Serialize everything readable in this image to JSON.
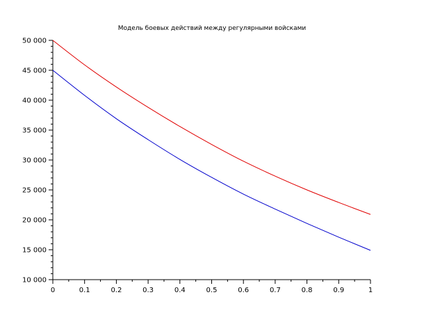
{
  "chart_data": {
    "type": "line",
    "title": "Модель боевых действий между регулярными войсками",
    "xlabel": "",
    "ylabel": "",
    "xlim": [
      0,
      1
    ],
    "ylim": [
      10000,
      50000
    ],
    "x_ticks": [
      "0",
      "0.1",
      "0.2",
      "0.3",
      "0.4",
      "0.5",
      "0.6",
      "0.7",
      "0.8",
      "0.9",
      "1"
    ],
    "y_ticks": [
      "10 000",
      "15 000",
      "20 000",
      "25 000",
      "30 000",
      "35 000",
      "40 000",
      "45 000",
      "50 000"
    ],
    "grid": false,
    "x": [
      0,
      0.1,
      0.2,
      0.3,
      0.4,
      0.5,
      0.6,
      0.7,
      0.8,
      0.9,
      1.0
    ],
    "series": [
      {
        "color": "#e00000",
        "values": [
          50000,
          45900,
          42200,
          38800,
          35600,
          32600,
          29800,
          27300,
          25000,
          22900,
          20900
        ]
      },
      {
        "color": "#0000cc",
        "values": [
          45000,
          40800,
          36900,
          33400,
          30100,
          27100,
          24300,
          21800,
          19400,
          17100,
          14900
        ]
      }
    ]
  }
}
